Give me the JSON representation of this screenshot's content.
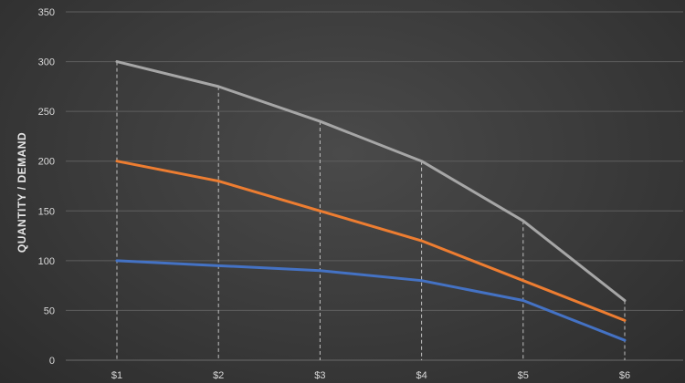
{
  "chart_data": {
    "type": "line",
    "title": "",
    "xlabel": "",
    "ylabel": "QUANTITY / DEMAND",
    "categories": [
      "$1",
      "$2",
      "$3",
      "$4",
      "$5",
      "$6"
    ],
    "ylim": [
      0,
      350
    ],
    "yticks": [
      0,
      50,
      100,
      150,
      200,
      250,
      300,
      350
    ],
    "grid": true,
    "drop_lines": true,
    "legend": "none",
    "series": [
      {
        "color": "#a6a6a6",
        "values": [
          300,
          275,
          240,
          200,
          140,
          60
        ]
      },
      {
        "color": "#ed7d31",
        "values": [
          200,
          180,
          150,
          120,
          80,
          40
        ]
      },
      {
        "color": "#4472c4",
        "values": [
          100,
          95,
          90,
          80,
          60,
          20
        ]
      }
    ],
    "colors": {
      "gridline": "#5e5e5e",
      "dropline": "#bfbfbf",
      "axis": "#6a6a6a"
    }
  }
}
